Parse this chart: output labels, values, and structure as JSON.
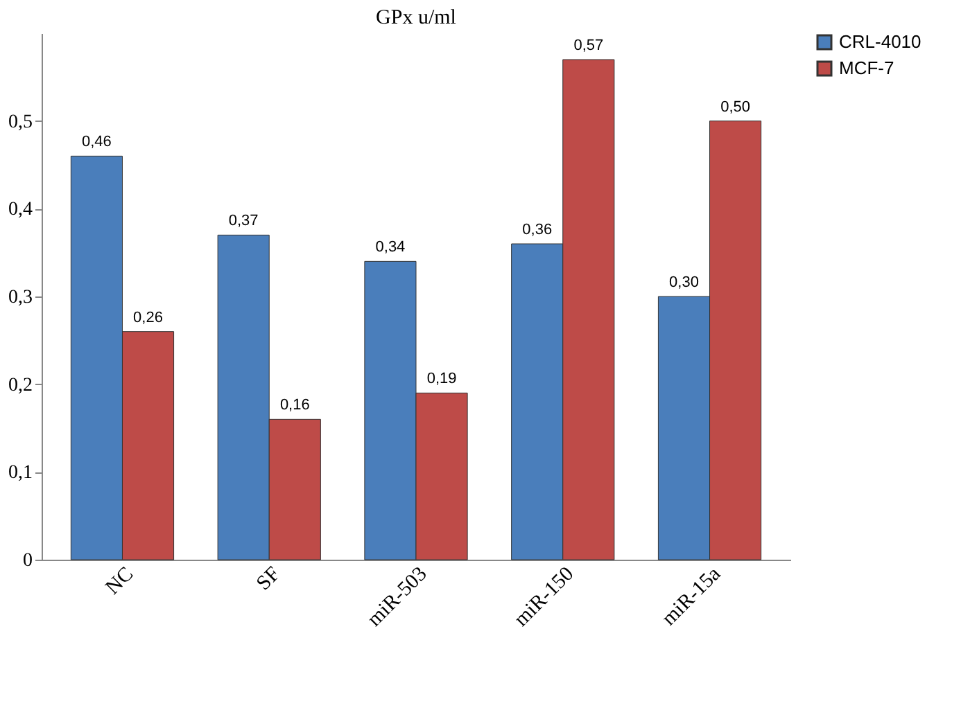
{
  "chart_data": {
    "type": "bar",
    "title": "GPx u/ml",
    "categories": [
      "NC",
      "SF",
      "miR-503",
      "miR-150",
      "miR-15a"
    ],
    "series": [
      {
        "name": "CRL-4010",
        "color": "#4a7ebb",
        "values": [
          0.46,
          0.37,
          0.34,
          0.36,
          0.3
        ],
        "value_labels": [
          "0,46",
          "0,37",
          "0,34",
          "0,36",
          "0,30"
        ]
      },
      {
        "name": "MCF-7",
        "color": "#be4b48",
        "values": [
          0.26,
          0.16,
          0.19,
          0.57,
          0.5
        ],
        "value_labels": [
          "0,26",
          "0,16",
          "0,19",
          "0,57",
          "0,50"
        ]
      }
    ],
    "ylim": [
      0,
      0.6
    ],
    "yticks": [
      0,
      {
        "value": 0.1,
        "label": "0,1"
      },
      {
        "value": 0.2,
        "label": "0,2"
      },
      {
        "value": 0.3,
        "label": "0,3"
      },
      {
        "value": 0.4,
        "label": "0,4"
      },
      {
        "value": 0.5,
        "label": "0,5"
      }
    ],
    "grid": false,
    "legend": "right"
  }
}
